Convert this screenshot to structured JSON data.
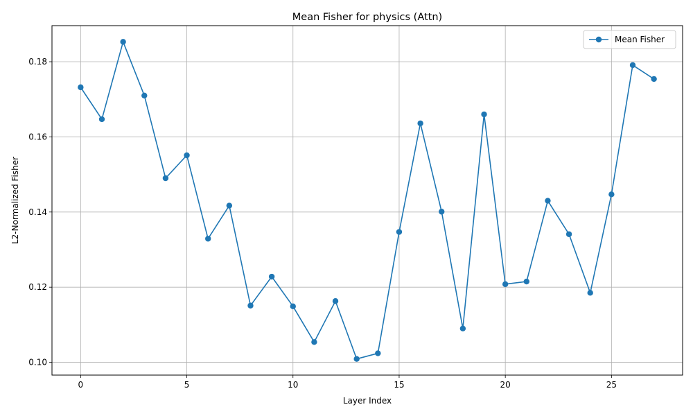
{
  "chart_data": {
    "type": "line",
    "title": "Mean Fisher for physics (Attn)",
    "xlabel": "Layer Index",
    "ylabel": "L2-Normalized Fisher",
    "xlim": [
      -1.35,
      28.35
    ],
    "ylim": [
      0.0966,
      0.1896
    ],
    "x_ticks": [
      0,
      5,
      10,
      15,
      20,
      25
    ],
    "y_ticks": [
      0.1,
      0.12,
      0.14,
      0.16,
      0.18
    ],
    "y_tick_labels": [
      "0.10",
      "0.12",
      "0.14",
      "0.16",
      "0.18"
    ],
    "grid": true,
    "legend_position": "top-right",
    "series": [
      {
        "name": "Mean Fisher",
        "color": "#1f77b4",
        "marker": "circle",
        "x": [
          0,
          1,
          2,
          3,
          4,
          5,
          6,
          7,
          8,
          9,
          10,
          11,
          12,
          13,
          14,
          15,
          16,
          17,
          18,
          19,
          20,
          21,
          22,
          23,
          24,
          25,
          26,
          27
        ],
        "values": [
          0.1732,
          0.1647,
          0.1853,
          0.171,
          0.149,
          0.1551,
          0.1329,
          0.1417,
          0.1151,
          0.1228,
          0.1149,
          0.1054,
          0.1163,
          0.1009,
          0.1024,
          0.1347,
          0.1636,
          0.1401,
          0.109,
          0.166,
          0.1208,
          0.1215,
          0.143,
          0.1341,
          0.1185,
          0.1447,
          0.1791,
          0.1754
        ]
      }
    ]
  }
}
